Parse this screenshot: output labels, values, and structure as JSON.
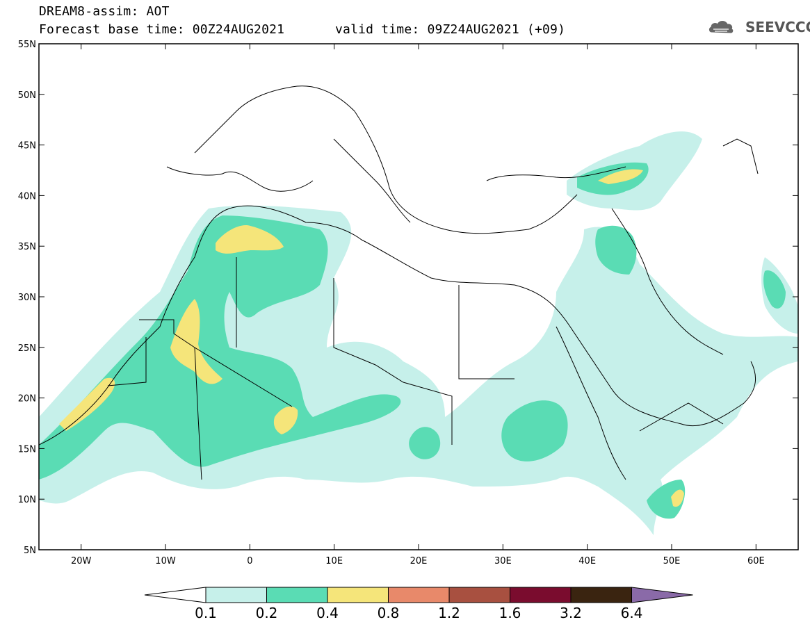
{
  "header": {
    "title_line1": "DREAM8-assim: AOT",
    "title_line2_base": "Forecast base time: 00Z24AUG2021",
    "title_line2_valid": "valid time: 09Z24AUG2021 (+09)",
    "logo_text": "SEEVCCC"
  },
  "map": {
    "lon_range": [
      -25,
      65
    ],
    "lat_range": [
      5,
      55
    ],
    "lat_ticks": [
      {
        "value": 55,
        "label": "55N"
      },
      {
        "value": 50,
        "label": "50N"
      },
      {
        "value": 45,
        "label": "45N"
      },
      {
        "value": 40,
        "label": "40N"
      },
      {
        "value": 35,
        "label": "35N"
      },
      {
        "value": 30,
        "label": "30N"
      },
      {
        "value": 25,
        "label": "25N"
      },
      {
        "value": 20,
        "label": "20N"
      },
      {
        "value": 15,
        "label": "15N"
      },
      {
        "value": 10,
        "label": "10N"
      },
      {
        "value": 5,
        "label": "5N"
      }
    ],
    "lon_ticks": [
      {
        "value": -20,
        "label": "20W"
      },
      {
        "value": -10,
        "label": "10W"
      },
      {
        "value": 0,
        "label": "0"
      },
      {
        "value": 10,
        "label": "10E"
      },
      {
        "value": 20,
        "label": "20E"
      },
      {
        "value": 30,
        "label": "30E"
      },
      {
        "value": 40,
        "label": "40E"
      },
      {
        "value": 50,
        "label": "50E"
      },
      {
        "value": 60,
        "label": "60E"
      }
    ]
  },
  "colorbar": {
    "labels": [
      "0.1",
      "0.2",
      "0.4",
      "0.8",
      "1.2",
      "1.6",
      "3.2",
      "6.4"
    ],
    "colors": [
      "#c6f0ea",
      "#5adcb4",
      "#f5e57a",
      "#e8896a",
      "#a85040",
      "#7a0c2e",
      "#3a2410",
      "#8a6aa8"
    ]
  },
  "field_colors": {
    "level1": "#c6f0ea",
    "level2": "#5adcb4",
    "level3": "#f5e57a",
    "land_border": "#000000"
  }
}
